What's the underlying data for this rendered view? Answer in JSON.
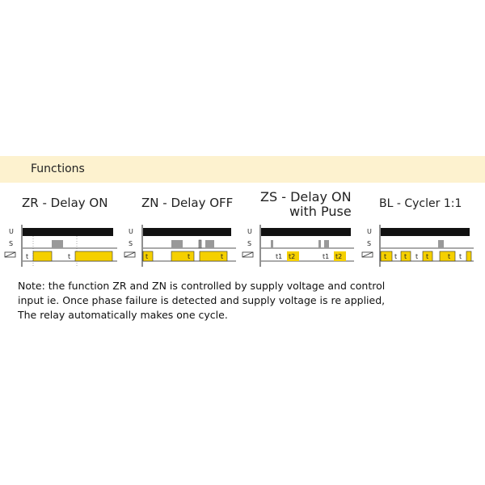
{
  "section_title": "Functions",
  "colors": {
    "banner": "#fdf2cf",
    "relay_on": "#f5d000",
    "supply": "#111111",
    "switch": "#999999"
  },
  "functions": [
    {
      "title": "ZR - Delay ON",
      "labels": [
        "t",
        "t"
      ]
    },
    {
      "title": "ZN - Delay OFF",
      "labels": [
        "t",
        "t",
        "t"
      ]
    },
    {
      "title_line1": "ZS - Delay ON",
      "title_line2": "with Puse",
      "labels": [
        "t1",
        "t2",
        "t1",
        "t2"
      ]
    },
    {
      "title": "BL - Cycler 1:1",
      "labels": [
        "t",
        "t",
        "t",
        "t",
        "t",
        "t",
        "t",
        "t"
      ]
    }
  ],
  "axis_labels": {
    "u": "U",
    "s": "S"
  },
  "note": {
    "line1": "Note: the function ZR and ZN is controlled by supply voltage and control",
    "line2": "input ie. Once phase failure is detected and supply voltage is re applied,",
    "line3": "The relay automatically makes one cycle."
  }
}
